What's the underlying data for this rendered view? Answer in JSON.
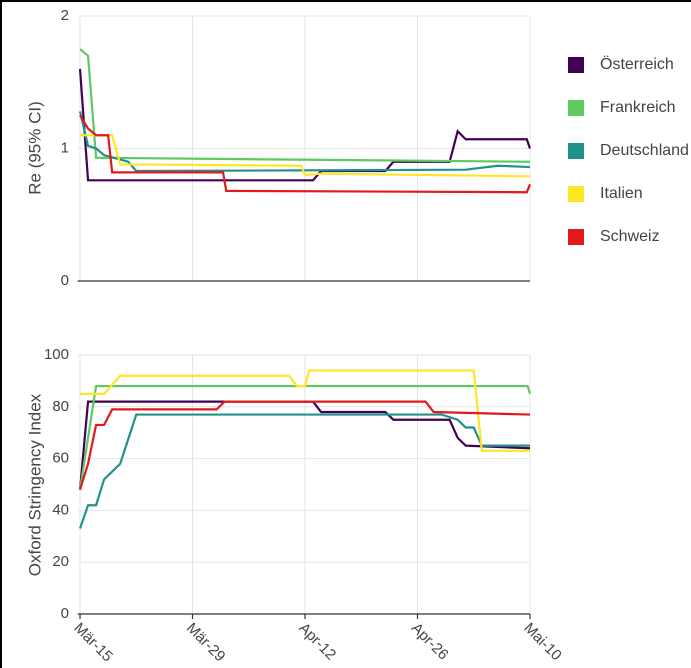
{
  "chart_data": [
    {
      "type": "line",
      "y_label": "Re (95% CI)",
      "ylim": [
        0,
        2
      ],
      "yticks": [
        0,
        1,
        2
      ],
      "xlim": [
        -0.3,
        56
      ],
      "grid": true,
      "series": [
        {
          "name": "Österreich",
          "color": "#440154",
          "x": [
            0,
            1,
            29,
            30,
            38,
            39,
            46,
            47,
            48,
            55.6,
            56
          ],
          "values": [
            1.6,
            0.76,
            0.76,
            0.83,
            0.83,
            0.9,
            0.9,
            1.13,
            1.07,
            1.07,
            1.0
          ]
        },
        {
          "name": "Frankreich",
          "color": "#5ec962",
          "x": [
            0,
            1,
            2,
            56
          ],
          "values": [
            1.75,
            1.7,
            0.93,
            0.9
          ]
        },
        {
          "name": "Deutschland",
          "color": "#21918c",
          "x": [
            0,
            1,
            2,
            3,
            6,
            7,
            48,
            52,
            56
          ],
          "values": [
            1.28,
            1.02,
            1.0,
            0.95,
            0.9,
            0.83,
            0.84,
            0.87,
            0.86
          ]
        },
        {
          "name": "Italien",
          "color": "#fde725",
          "x": [
            0,
            4,
            5,
            27.5,
            28,
            30,
            56
          ],
          "values": [
            1.1,
            1.1,
            0.88,
            0.87,
            0.8,
            0.81,
            0.79
          ]
        },
        {
          "name": "Schweiz",
          "color": "#e31a1c",
          "x": [
            0,
            1,
            2,
            3.5,
            4,
            17.8,
            18.2,
            55.6,
            56
          ],
          "values": [
            1.25,
            1.15,
            1.1,
            1.1,
            0.82,
            0.82,
            0.68,
            0.67,
            0.73
          ]
        }
      ]
    },
    {
      "type": "line",
      "y_label": "Oxford Stringency Index",
      "ylim": [
        0,
        100
      ],
      "yticks": [
        0,
        20,
        40,
        60,
        80,
        100
      ],
      "xlim": [
        -0.3,
        56
      ],
      "grid": true,
      "xticks": [
        {
          "value": 0,
          "label": "Mär-15"
        },
        {
          "value": 14,
          "label": "Mär-29"
        },
        {
          "value": 28,
          "label": "Apr-12"
        },
        {
          "value": 42,
          "label": "Apr-26"
        },
        {
          "value": 56,
          "label": "Mai-10"
        }
      ],
      "series": [
        {
          "color": "#440154",
          "x": [
            0,
            1,
            29,
            30,
            38,
            39,
            46,
            47,
            48,
            56
          ],
          "values": [
            48,
            82,
            82,
            78,
            78,
            75,
            75,
            68,
            65,
            64
          ]
        },
        {
          "color": "#5ec962",
          "x": [
            0,
            2,
            55.7,
            56
          ],
          "values": [
            48,
            88,
            88,
            85
          ]
        },
        {
          "color": "#21918c",
          "x": [
            0,
            1,
            2,
            3,
            5,
            7,
            45,
            47,
            48,
            49,
            50,
            56
          ],
          "values": [
            33,
            42,
            42,
            52,
            58,
            77,
            77,
            75,
            72,
            72,
            65,
            65
          ]
        },
        {
          "color": "#fde725",
          "x": [
            0,
            3,
            5,
            26,
            27,
            28,
            28.5,
            49,
            50,
            56
          ],
          "values": [
            85,
            85,
            92,
            92,
            88,
            88,
            94,
            94,
            63,
            63
          ]
        },
        {
          "color": "#e31a1c",
          "x": [
            0,
            1,
            2,
            3,
            4,
            17,
            18,
            43,
            44,
            56
          ],
          "values": [
            48,
            58,
            73,
            73,
            79,
            79,
            82,
            82,
            78,
            77
          ]
        }
      ]
    }
  ]
}
